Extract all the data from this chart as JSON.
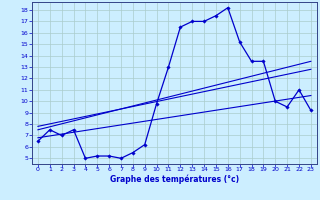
{
  "xlabel": "Graphe des températures (°c)",
  "bg_color": "#cceeff",
  "grid_color": "#aacccc",
  "line_color": "#0000cc",
  "spine_color": "#334488",
  "xlim": [
    -0.5,
    23.5
  ],
  "ylim": [
    4.5,
    18.7
  ],
  "xticks": [
    0,
    1,
    2,
    3,
    4,
    5,
    6,
    7,
    8,
    9,
    10,
    11,
    12,
    13,
    14,
    15,
    16,
    17,
    18,
    19,
    20,
    21,
    22,
    23
  ],
  "yticks": [
    5,
    6,
    7,
    8,
    9,
    10,
    11,
    12,
    13,
    14,
    15,
    16,
    17,
    18
  ],
  "main_line_x": [
    0,
    1,
    2,
    3,
    4,
    5,
    6,
    7,
    8,
    9,
    10,
    11,
    12,
    13,
    14,
    15,
    16,
    17,
    18,
    19,
    20,
    21,
    22,
    23
  ],
  "main_line_y": [
    6.5,
    7.5,
    7.0,
    7.5,
    5.0,
    5.2,
    5.2,
    5.0,
    5.5,
    6.2,
    9.8,
    13.0,
    16.5,
    17.0,
    17.0,
    17.5,
    18.2,
    15.2,
    13.5,
    13.5,
    10.0,
    9.5,
    11.0,
    9.2
  ],
  "trend1_x": [
    0,
    23
  ],
  "trend1_y": [
    7.5,
    13.5
  ],
  "trend2_x": [
    0,
    23
  ],
  "trend2_y": [
    7.8,
    12.8
  ],
  "trend3_x": [
    0,
    23
  ],
  "trend3_y": [
    6.8,
    10.5
  ]
}
